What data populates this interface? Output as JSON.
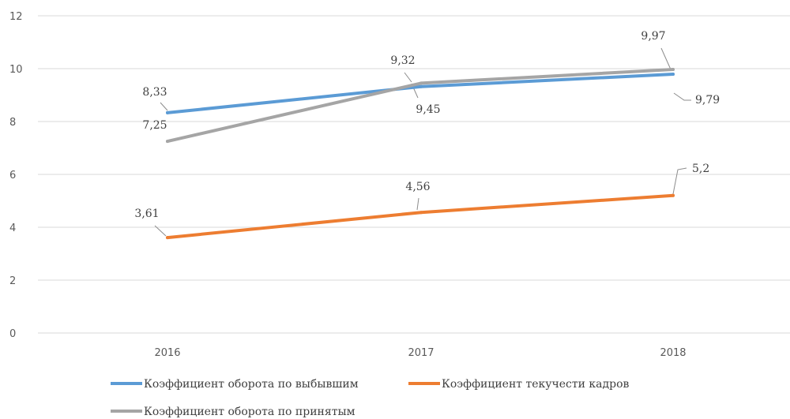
{
  "chart_data": {
    "type": "line",
    "categories": [
      "2016",
      "2017",
      "2018"
    ],
    "ylim": [
      0,
      12
    ],
    "yticks": [
      "0",
      "2",
      "4",
      "6",
      "8",
      "10",
      "12"
    ],
    "grid": true,
    "legend_position": "bottom",
    "series": [
      {
        "name": "Коэффициент оборота по выбывшим",
        "color": "#5B9BD5",
        "values": [
          8.33,
          9.32,
          9.79
        ],
        "labels": [
          "8,33",
          "9,32",
          "9,79"
        ]
      },
      {
        "name": "Коэффициент текучести кадров",
        "color": "#ED7D31",
        "values": [
          3.61,
          4.56,
          5.2
        ],
        "labels": [
          "3,61",
          "4,56",
          "5,2"
        ]
      },
      {
        "name": "Коэффициент оборота по принятым",
        "color": "#A5A5A5",
        "values": [
          7.25,
          9.45,
          9.97
        ],
        "labels": [
          "7,25",
          "9,45",
          "9,97"
        ]
      }
    ]
  }
}
